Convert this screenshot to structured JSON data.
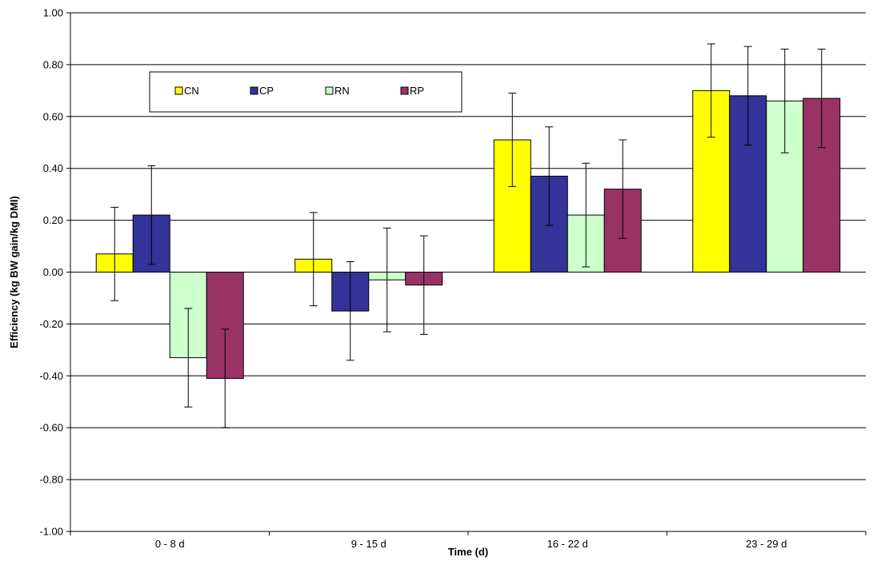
{
  "chart_data": {
    "type": "bar",
    "title": "",
    "xlabel": "Time (d)",
    "ylabel": "Efficiency (kg BW gain/kg DMI)",
    "ylim": [
      -1.0,
      1.0
    ],
    "yticks": [
      "1.00",
      "0.80",
      "0.60",
      "0.40",
      "0.20",
      "0.00",
      "-0.20",
      "-0.40",
      "-0.60",
      "-0.80",
      "-1.00"
    ],
    "ytick_values": [
      1.0,
      0.8,
      0.6,
      0.4,
      0.2,
      0.0,
      -0.2,
      -0.4,
      -0.6,
      -0.8,
      -1.0
    ],
    "grid": "horizontal",
    "legend_position": "top-left",
    "categories": [
      "0 - 8 d",
      "9 - 15 d",
      "16 - 22 d",
      "23 - 29 d"
    ],
    "series": [
      {
        "name": "CN",
        "color": "#ffff00",
        "values": [
          0.07,
          0.05,
          0.51,
          0.7
        ],
        "errors": [
          0.18,
          0.18,
          0.18,
          0.18
        ]
      },
      {
        "name": "CP",
        "color": "#333399",
        "values": [
          0.22,
          -0.15,
          0.37,
          0.68
        ],
        "errors": [
          0.19,
          0.19,
          0.19,
          0.19
        ]
      },
      {
        "name": "RN",
        "color": "#ccffcc",
        "values": [
          -0.33,
          -0.03,
          0.22,
          0.66
        ],
        "errors": [
          0.19,
          0.2,
          0.2,
          0.2
        ]
      },
      {
        "name": "RP",
        "color": "#993366",
        "values": [
          -0.41,
          -0.05,
          0.32,
          0.67
        ],
        "errors": [
          0.19,
          0.19,
          0.19,
          0.19
        ]
      }
    ]
  }
}
